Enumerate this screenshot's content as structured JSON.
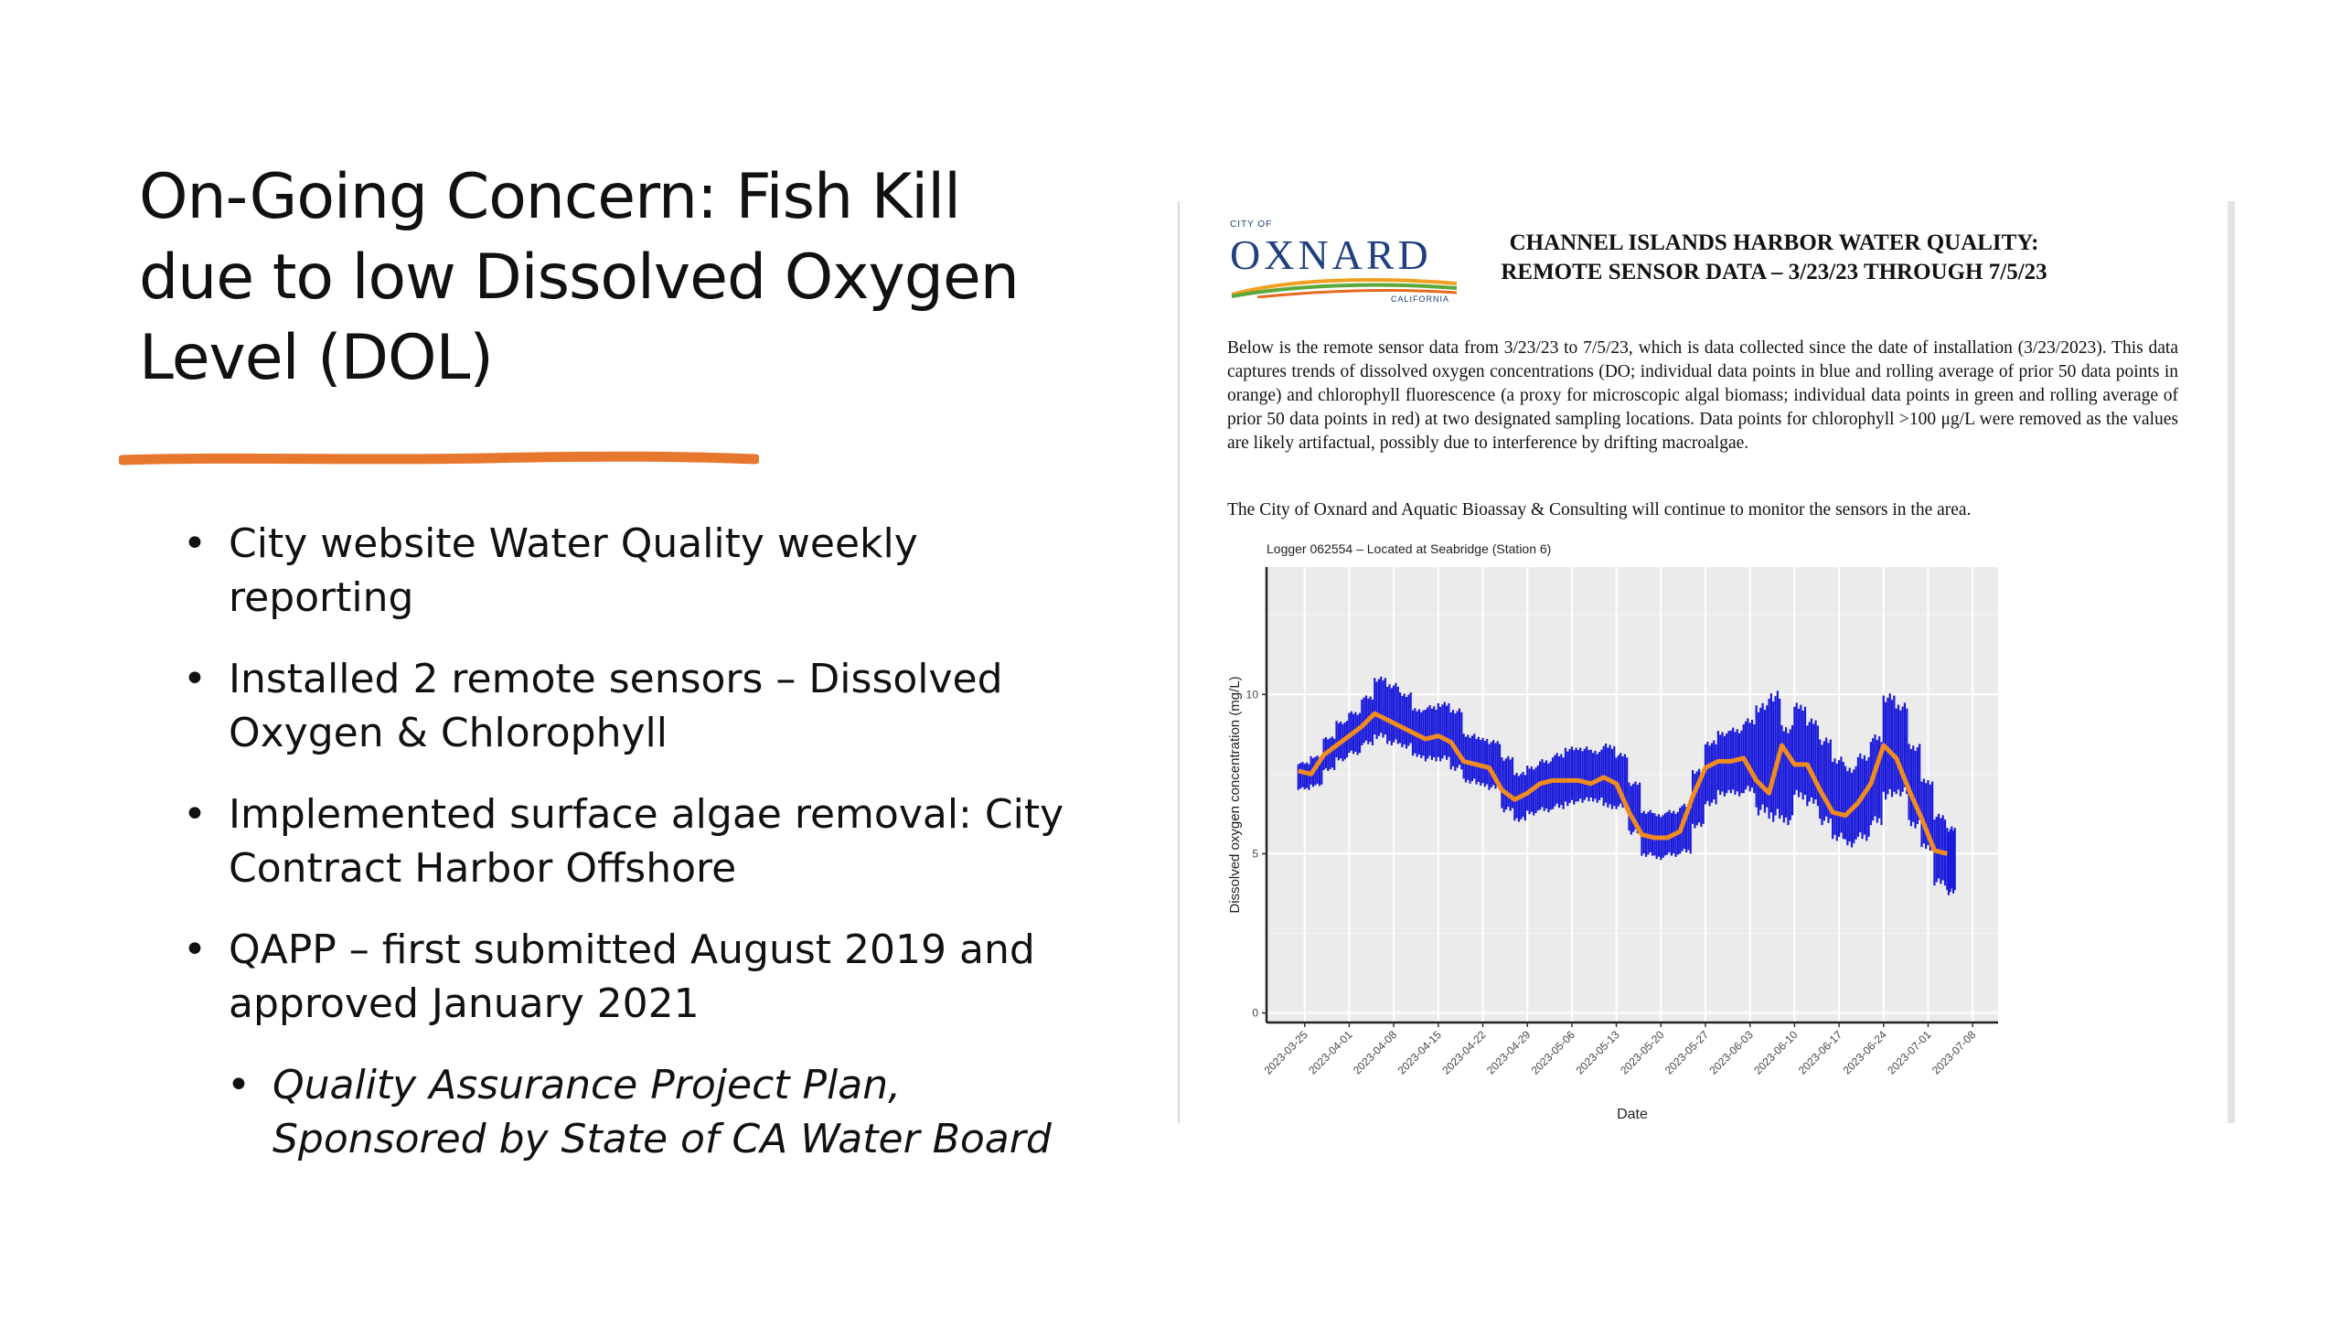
{
  "slide": {
    "title_lines": [
      "On-Going Concern: Fish Kill",
      "due to low Dissolved Oxygen",
      "Level (DOL)"
    ],
    "accent_color": "#e8772e",
    "bullets": [
      "City website Water Quality weekly reporting",
      "Installed 2 remote sensors – Dissolved Oxygen & Chlorophyll",
      "Implemented surface algae removal: City Contract Harbor Offshore",
      "QAPP – first submitted August 2019 and approved January 2021"
    ],
    "sub_bullet": "Quality Assurance Project Plan, Sponsored by State of CA Water Board"
  },
  "document": {
    "logo": {
      "city_of": "CITY OF",
      "name": "OXNARD",
      "state": "CALIFORNIA"
    },
    "heading_lines": [
      "CHANNEL ISLANDS HARBOR WATER QUALITY:",
      "REMOTE SENSOR DATA – 3/23/23 THROUGH 7/5/23"
    ],
    "paragraph": "Below is the remote sensor data from 3/23/23 to 7/5/23, which is data collected since the date of installation (3/23/2023). This data captures trends of dissolved oxygen concentrations (DO; individual data points in blue and rolling average of prior 50 data points in orange) and chlorophyll fluorescence (a proxy for microscopic algal biomass; individual data points in green and rolling average of prior 50 data points in red) at two designated sampling locations. Data points for chlorophyll >100 μg/L were removed as the values are likely artifactual, possibly due to interference by drifting macroalgae.",
    "paragraph2": "The City of Oxnard and Aquatic Bioassay & Consulting will continue to monitor the sensors in the area."
  },
  "chart_data": {
    "type": "line",
    "title": "Logger 062554 – Located at Seabridge (Station 6)",
    "xlabel": "Date",
    "ylabel": "Dissolved oxygen concentration (mg/L)",
    "xlim": [
      "2023-03-19",
      "2023-07-12"
    ],
    "ylim": [
      -0.3,
      14
    ],
    "yticks": [
      0,
      5,
      10
    ],
    "xticks": [
      "2023-03-25",
      "2023-04-01",
      "2023-04-08",
      "2023-04-15",
      "2023-04-22",
      "2023-04-29",
      "2023-05-06",
      "2023-05-13",
      "2023-05-20",
      "2023-05-27",
      "2023-06-03",
      "2023-06-10",
      "2023-06-17",
      "2023-06-24",
      "2023-07-01",
      "2023-07-08"
    ],
    "grid": true,
    "series": [
      {
        "color": "#1a1adb",
        "kind": "individual-range",
        "x": [
          "2023-03-24",
          "2023-03-26",
          "2023-03-28",
          "2023-03-30",
          "2023-04-01",
          "2023-04-03",
          "2023-04-05",
          "2023-04-07",
          "2023-04-09",
          "2023-04-11",
          "2023-04-13",
          "2023-04-15",
          "2023-04-17",
          "2023-04-19",
          "2023-04-21",
          "2023-04-23",
          "2023-04-25",
          "2023-04-27",
          "2023-04-29",
          "2023-05-01",
          "2023-05-03",
          "2023-05-05",
          "2023-05-07",
          "2023-05-09",
          "2023-05-11",
          "2023-05-13",
          "2023-05-15",
          "2023-05-17",
          "2023-05-19",
          "2023-05-21",
          "2023-05-23",
          "2023-05-25",
          "2023-05-27",
          "2023-05-29",
          "2023-05-31",
          "2023-06-02",
          "2023-06-04",
          "2023-06-06",
          "2023-06-08",
          "2023-06-10",
          "2023-06-12",
          "2023-06-14",
          "2023-06-16",
          "2023-06-18",
          "2023-06-20",
          "2023-06-22",
          "2023-06-24",
          "2023-06-26",
          "2023-06-28",
          "2023-06-30",
          "2023-07-02",
          "2023-07-04"
        ],
        "low": [
          7.0,
          7.1,
          7.6,
          7.9,
          8.1,
          8.4,
          8.6,
          8.4,
          8.3,
          8.0,
          7.9,
          7.9,
          7.6,
          7.2,
          7.1,
          7.0,
          6.3,
          6.0,
          6.2,
          6.3,
          6.4,
          6.5,
          6.6,
          6.6,
          6.4,
          6.4,
          5.6,
          4.9,
          4.8,
          4.9,
          5.0,
          5.8,
          6.5,
          6.8,
          6.8,
          6.9,
          6.2,
          6.0,
          5.9,
          6.7,
          6.5,
          5.9,
          5.4,
          5.2,
          5.4,
          5.9,
          6.7,
          6.8,
          5.8,
          5.1,
          4.0,
          3.7
        ],
        "high": [
          7.9,
          8.1,
          8.7,
          9.2,
          9.5,
          10.0,
          10.6,
          10.4,
          10.1,
          9.6,
          9.7,
          9.8,
          9.6,
          8.8,
          8.7,
          8.6,
          8.1,
          7.6,
          7.8,
          8.0,
          8.2,
          8.4,
          8.4,
          8.3,
          8.5,
          8.2,
          7.3,
          6.4,
          6.3,
          6.4,
          6.6,
          7.7,
          8.6,
          8.9,
          9.0,
          9.3,
          9.8,
          10.2,
          9.1,
          9.8,
          9.3,
          8.7,
          8.1,
          7.8,
          8.2,
          8.8,
          10.1,
          9.8,
          8.5,
          7.4,
          6.3,
          5.9
        ]
      },
      {
        "color": "#f08c1e",
        "kind": "rolling-average",
        "x": [
          "2023-03-24",
          "2023-03-26",
          "2023-03-28",
          "2023-03-30",
          "2023-04-01",
          "2023-04-03",
          "2023-04-05",
          "2023-04-07",
          "2023-04-09",
          "2023-04-11",
          "2023-04-13",
          "2023-04-15",
          "2023-04-17",
          "2023-04-19",
          "2023-04-21",
          "2023-04-23",
          "2023-04-25",
          "2023-04-27",
          "2023-04-29",
          "2023-05-01",
          "2023-05-03",
          "2023-05-05",
          "2023-05-07",
          "2023-05-09",
          "2023-05-11",
          "2023-05-13",
          "2023-05-15",
          "2023-05-17",
          "2023-05-19",
          "2023-05-21",
          "2023-05-23",
          "2023-05-25",
          "2023-05-27",
          "2023-05-29",
          "2023-05-31",
          "2023-06-02",
          "2023-06-04",
          "2023-06-06",
          "2023-06-08",
          "2023-06-10",
          "2023-06-12",
          "2023-06-14",
          "2023-06-16",
          "2023-06-18",
          "2023-06-20",
          "2023-06-22",
          "2023-06-24",
          "2023-06-26",
          "2023-06-28",
          "2023-06-30",
          "2023-07-02",
          "2023-07-04"
        ],
        "y": [
          7.6,
          7.5,
          8.1,
          8.4,
          8.7,
          9.0,
          9.4,
          9.2,
          9.0,
          8.8,
          8.6,
          8.7,
          8.5,
          7.9,
          7.8,
          7.7,
          7.0,
          6.7,
          6.9,
          7.2,
          7.3,
          7.3,
          7.3,
          7.2,
          7.4,
          7.2,
          6.3,
          5.6,
          5.5,
          5.5,
          5.7,
          6.8,
          7.7,
          7.9,
          7.9,
          8.0,
          7.3,
          6.9,
          8.4,
          7.8,
          7.8,
          7.0,
          6.3,
          6.2,
          6.6,
          7.2,
          8.4,
          8.0,
          7.0,
          6.1,
          5.1,
          5.0
        ]
      }
    ]
  }
}
